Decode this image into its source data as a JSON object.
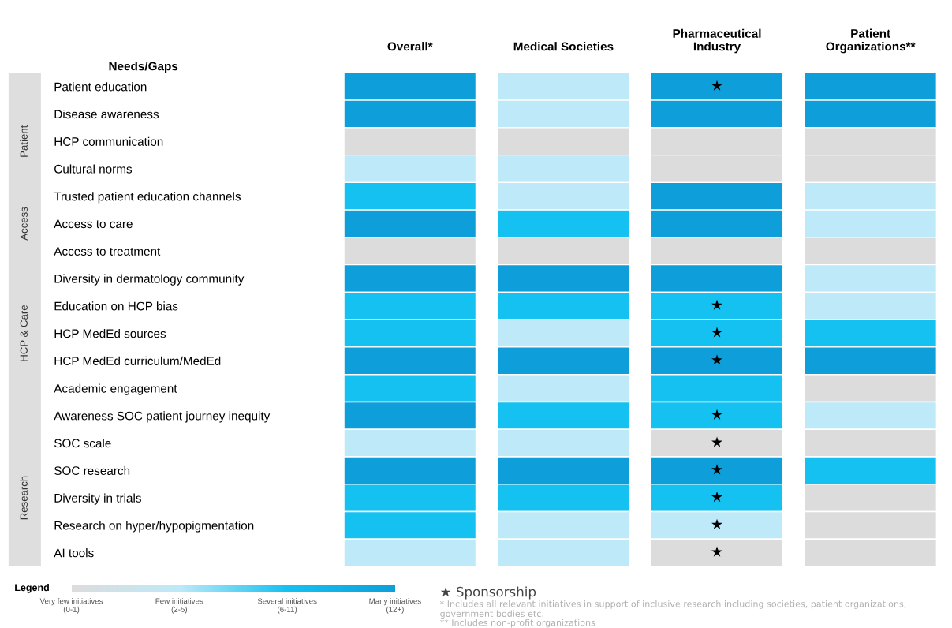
{
  "chart_data": {
    "type": "heatmap",
    "ylabel": "Needs/Gaps",
    "categories": [
      "Overall*",
      "Medical Societies",
      "Pharmaceutical\nIndustry",
      "Patient\nOrganizations**"
    ],
    "y_categories": [
      "Patient education",
      "Disease awareness",
      "HCP communication",
      "Cultural norms",
      "Trusted patient education channels",
      "Access to care",
      "Access to treatment",
      "Diversity in dermatology community",
      "Education on HCP bias",
      "HCP MedEd sources",
      "HCP MedEd curriculum/MedEd",
      "Academic engagement",
      "Awareness SOC patient journey inequity",
      "SOC scale",
      "SOC research",
      "Diversity in trials",
      "Research on hyper/hypopigmentation",
      "AI tools"
    ],
    "y2_categories": [
      null,
      null,
      "Patient",
      null,
      null,
      "Access",
      null,
      null,
      null,
      "HCP & Care",
      null,
      null,
      null,
      null,
      null,
      "Research",
      null,
      null
    ],
    "cells": [
      [
        3,
        1,
        3,
        3
      ],
      [
        3,
        1,
        3,
        3
      ],
      [
        0,
        0,
        0,
        0
      ],
      [
        1,
        1,
        0,
        0
      ],
      [
        2,
        1,
        3,
        1
      ],
      [
        3,
        2,
        3,
        1
      ],
      [
        0,
        0,
        0,
        0
      ],
      [
        3,
        3,
        3,
        1
      ],
      [
        2,
        2,
        2,
        1
      ],
      [
        2,
        1,
        2,
        2
      ],
      [
        3,
        3,
        3,
        3
      ],
      [
        2,
        1,
        2,
        0
      ],
      [
        3,
        2,
        2,
        1
      ],
      [
        1,
        1,
        0,
        0
      ],
      [
        3,
        3,
        3,
        2
      ],
      [
        2,
        2,
        2,
        0
      ],
      [
        2,
        1,
        1,
        0
      ],
      [
        1,
        1,
        0,
        0
      ]
    ],
    "cell_labels": [
      [
        null,
        null,
        "★",
        null
      ],
      [
        null,
        null,
        null,
        null
      ],
      [
        null,
        null,
        null,
        null
      ],
      [
        null,
        null,
        null,
        null
      ],
      [
        null,
        null,
        null,
        null
      ],
      [
        null,
        null,
        null,
        null
      ],
      [
        null,
        null,
        null,
        null
      ],
      [
        null,
        null,
        null,
        null
      ],
      [
        null,
        null,
        "★",
        null
      ],
      [
        null,
        null,
        "★",
        null
      ],
      [
        null,
        null,
        "★",
        null
      ],
      [
        null,
        null,
        null,
        null
      ],
      [
        null,
        null,
        "★",
        null
      ],
      [
        null,
        null,
        "★",
        null
      ],
      [
        null,
        null,
        "★",
        null
      ],
      [
        null,
        null,
        "★",
        null
      ],
      [
        null,
        null,
        "★",
        null
      ],
      [
        null,
        null,
        "★",
        null
      ]
    ],
    "colors": [
      "#dcdcdc",
      "#bde9f8",
      "#14c1f0",
      "#0e9fdb"
    ],
    "clabel": "Legend",
    "clim": [
      0,
      3
    ],
    "cticks": [
      {
        "value": 0,
        "label": "Very few initiatives\n(0-1)"
      },
      {
        "value": 1,
        "label": "Few initiatives\n(2-5)"
      },
      {
        "value": 2,
        "label": "Several initiatives\n(6-11)"
      },
      {
        "value": 3,
        "label": "Many initiatives\n(12+)"
      }
    ],
    "annotations": [
      "★ Sponsorship",
      "* Includes all relevant initiatives in support of inclusive research including societies, patient organizations,\ngovernment bodies etc.",
      "** Includes non-profit organizations"
    ]
  }
}
